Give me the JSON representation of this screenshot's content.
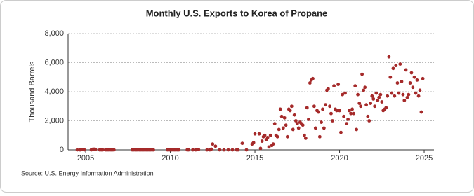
{
  "chart_data": {
    "type": "scatter",
    "title": "Monthly U.S. Exports to Korea of Propane",
    "y_label": "Thousand Barrels",
    "source": "Source: U.S. Energy Information Administration",
    "color": "#a52a2a",
    "grid": true,
    "xlim": [
      2003.96,
      2025.58
    ],
    "xticks": [
      2005,
      2010,
      2015,
      2020,
      2025
    ],
    "ylim": [
      0,
      8000
    ],
    "yticks": [
      0,
      {
        "value": 2000,
        "label": "2,000"
      },
      {
        "value": 4000,
        "label": "4,000"
      },
      {
        "value": 6000,
        "label": "6,000"
      },
      {
        "value": 8000,
        "label": "8,000"
      }
    ],
    "x": [
      2004.5,
      2004.67,
      2004.83,
      2004.92,
      2005.33,
      2005.42,
      2005.5,
      2005.58,
      2005.83,
      2005.92,
      2006.0,
      2006.17,
      2006.25,
      2006.33,
      2006.42,
      2006.5,
      2006.58,
      2006.67,
      2007.75,
      2007.83,
      2007.92,
      2008.0,
      2008.08,
      2008.17,
      2008.25,
      2008.33,
      2008.42,
      2008.5,
      2008.58,
      2008.67,
      2008.75,
      2008.83,
      2008.92,
      2009.0,
      2009.83,
      2009.92,
      2010.0,
      2010.08,
      2010.17,
      2010.25,
      2010.33,
      2010.42,
      2010.5,
      2011.0,
      2011.08,
      2011.33,
      2011.5,
      2011.67,
      2012.17,
      2012.33,
      2012.42,
      2012.5,
      2012.67,
      2012.92,
      2013.17,
      2013.42,
      2013.67,
      2013.92,
      2014.0,
      2014.25,
      2014.5,
      2014.83,
      2014.92,
      2015.0,
      2015.25,
      2015.33,
      2015.42,
      2015.5,
      2015.58,
      2015.67,
      2015.75,
      2015.83,
      2015.92,
      2016.0,
      2016.08,
      2016.17,
      2016.25,
      2016.33,
      2016.42,
      2016.5,
      2016.58,
      2016.67,
      2016.75,
      2016.83,
      2016.92,
      2017.0,
      2017.08,
      2017.17,
      2017.25,
      2017.33,
      2017.42,
      2017.5,
      2017.58,
      2017.67,
      2017.75,
      2017.83,
      2017.92,
      2018.0,
      2018.08,
      2018.17,
      2018.25,
      2018.33,
      2018.42,
      2018.5,
      2018.58,
      2018.67,
      2018.75,
      2018.83,
      2018.92,
      2019.0,
      2019.08,
      2019.17,
      2019.25,
      2019.33,
      2019.42,
      2019.5,
      2019.58,
      2019.67,
      2019.75,
      2019.83,
      2019.92,
      2020.0,
      2020.08,
      2020.17,
      2020.25,
      2020.33,
      2020.42,
      2020.5,
      2020.58,
      2020.67,
      2020.75,
      2020.83,
      2020.92,
      2021.0,
      2021.08,
      2021.17,
      2021.25,
      2021.33,
      2021.42,
      2021.5,
      2021.58,
      2021.67,
      2021.75,
      2021.83,
      2021.92,
      2022.0,
      2022.08,
      2022.17,
      2022.25,
      2022.33,
      2022.42,
      2022.5,
      2022.58,
      2022.67,
      2022.75,
      2022.83,
      2022.92,
      2023.0,
      2023.08,
      2023.17,
      2023.25,
      2023.33,
      2023.42,
      2023.5,
      2023.58,
      2023.67,
      2023.75,
      2023.83,
      2023.92,
      2024.0,
      2024.08,
      2024.17,
      2024.25,
      2024.33,
      2024.42,
      2024.5,
      2024.58,
      2024.67,
      2024.75,
      2024.83,
      2024.92
    ],
    "values": [
      0,
      0,
      30,
      0,
      0,
      40,
      50,
      30,
      0,
      0,
      0,
      0,
      0,
      0,
      0,
      0,
      0,
      0,
      0,
      0,
      0,
      0,
      0,
      0,
      0,
      0,
      0,
      0,
      0,
      0,
      0,
      0,
      0,
      0,
      0,
      0,
      0,
      0,
      0,
      0,
      0,
      0,
      0,
      0,
      0,
      0,
      0,
      20,
      0,
      0,
      50,
      400,
      250,
      0,
      0,
      0,
      0,
      0,
      0,
      450,
      0,
      400,
      500,
      1100,
      1100,
      100,
      600,
      900,
      1000,
      700,
      850,
      200,
      1000,
      300,
      400,
      1800,
      1000,
      900,
      1400,
      2800,
      2300,
      1500,
      2200,
      1700,
      900,
      2800,
      2700,
      3000,
      1400,
      2400,
      2000,
      1800,
      1500,
      1900,
      1800,
      1700,
      1000,
      800,
      2900,
      2100,
      4600,
      4800,
      4900,
      3000,
      1500,
      2700,
      2600,
      900,
      1900,
      2800,
      1500,
      3100,
      4100,
      4200,
      3000,
      2500,
      2000,
      4400,
      2800,
      2700,
      4500,
      2700,
      1200,
      3800,
      2300,
      3900,
      1800,
      2100,
      2700,
      2500,
      2800,
      2500,
      4400,
      1400,
      3800,
      3200,
      3000,
      5200,
      4100,
      4300,
      3100,
      2300,
      2000,
      3200,
      3700,
      3500,
      3000,
      3900,
      3400,
      3600,
      3800,
      3300,
      2700,
      2800,
      2900,
      3700,
      6400,
      5000,
      3900,
      5600,
      3700,
      5800,
      4600,
      3900,
      5900,
      4700,
      3800,
      3400,
      5500,
      3600,
      3800,
      4600,
      5300,
      4300,
      5000,
      3900,
      4800,
      3700,
      4100,
      2600,
      4900
    ]
  }
}
